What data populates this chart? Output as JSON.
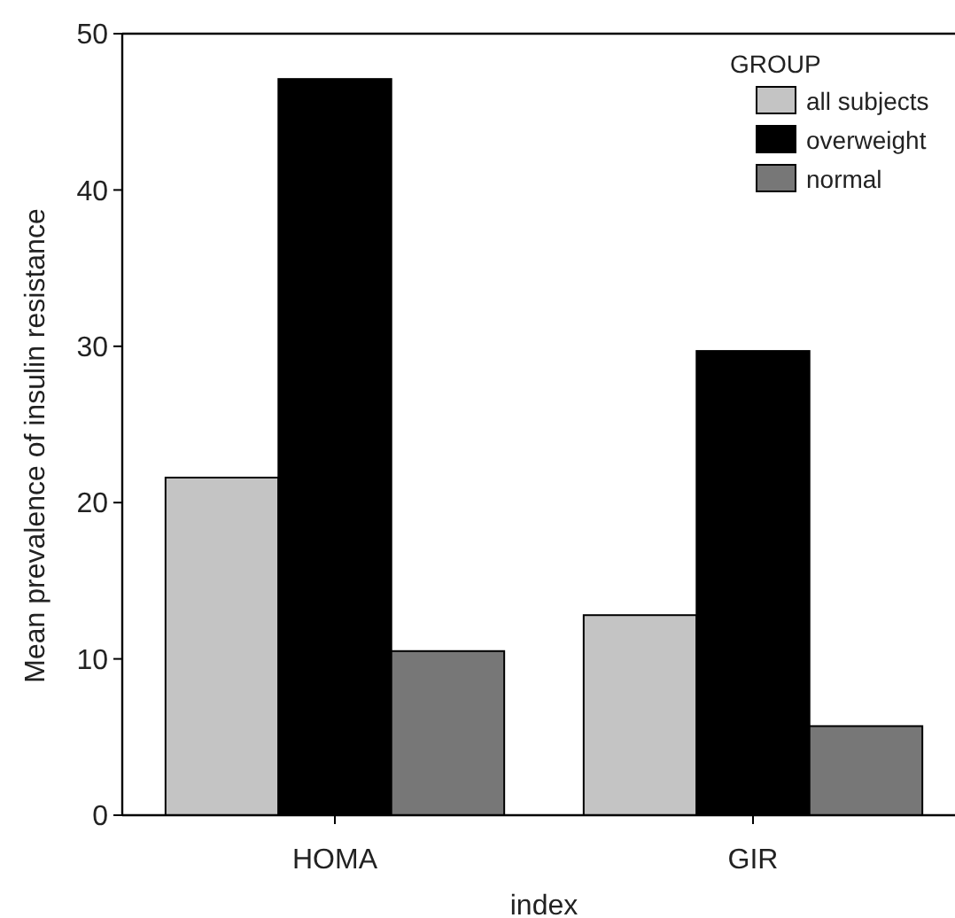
{
  "chart_data": {
    "type": "bar",
    "xlabel": "index",
    "ylabel": "Mean prevalence of insulin resistance",
    "legend_title": "GROUP",
    "legend": "top right",
    "categories": [
      "HOMA",
      "GIR"
    ],
    "series": [
      {
        "name": "all subjects",
        "color": "#c4c4c4",
        "values": [
          21.6,
          12.8
        ]
      },
      {
        "name": "overweight",
        "color": "#000000",
        "values": [
          47.1,
          29.7
        ]
      },
      {
        "name": "normal",
        "color": "#777777",
        "values": [
          10.5,
          5.7
        ]
      }
    ],
    "ylim": [
      0,
      50
    ],
    "yticks": [
      0,
      10,
      20,
      30,
      40,
      50
    ]
  }
}
